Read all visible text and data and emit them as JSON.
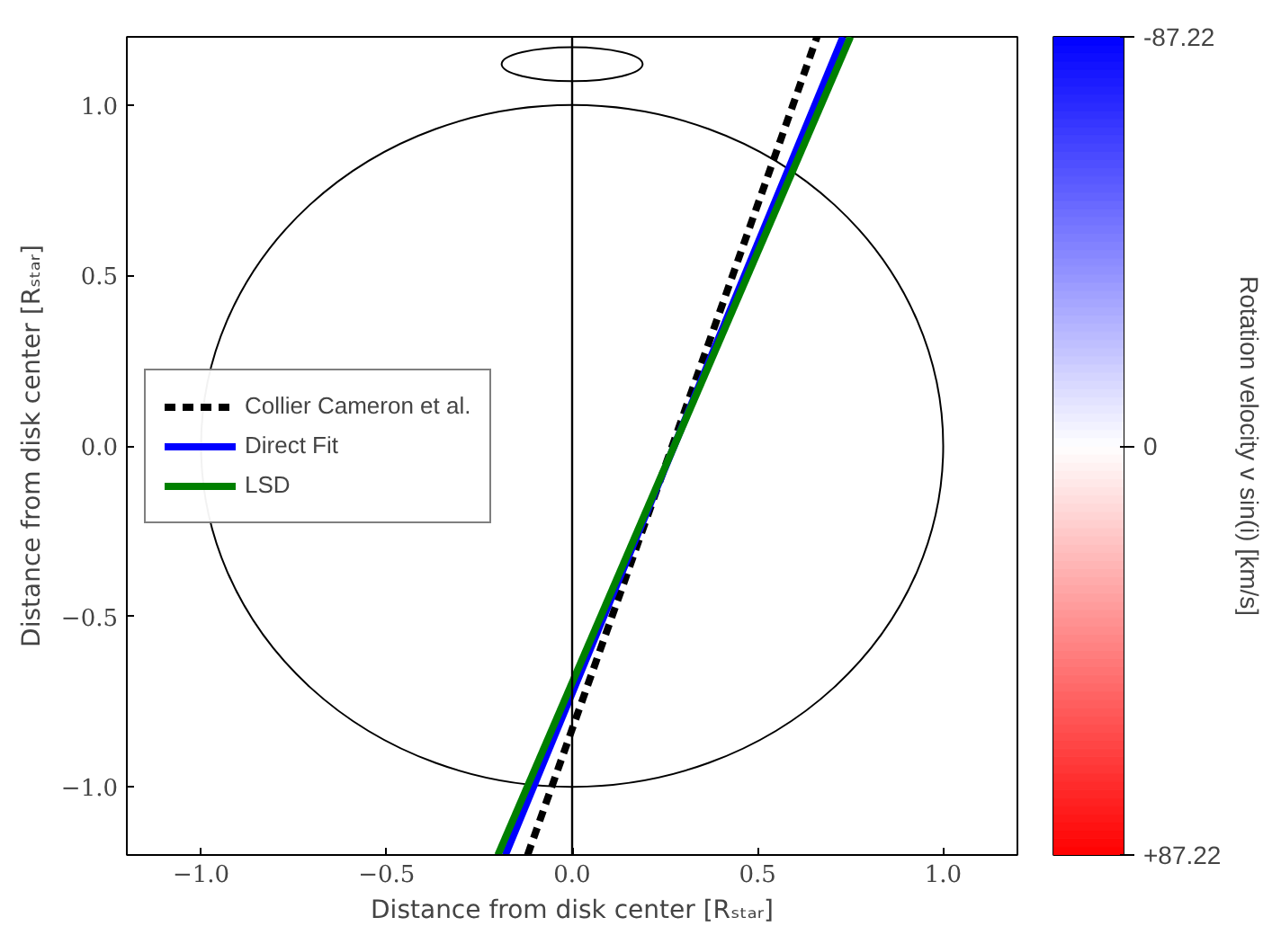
{
  "chart_data": {
    "type": "line",
    "xlabel": "Distance from disk center [Rₛₜₐᵣ]",
    "ylabel": "Distance from disk center [Rₛₜₐᵣ]",
    "clabel": "Rotation velocity v sin(i) [km/s]",
    "clim": [
      87.22,
      -87.22
    ],
    "cticks": [
      {
        "value": 87.22,
        "label": "+87.22"
      },
      0,
      {
        "value": -87.22,
        "label": "-87.22"
      }
    ],
    "xlim": [
      -1.2,
      1.2
    ],
    "ylim": [
      -1.2,
      1.2
    ],
    "xticks": [
      {
        "value": -1.0,
        "label": "−1.0"
      },
      {
        "value": -0.5,
        "label": "−0.5"
      },
      {
        "value": 0.0,
        "label": "0.0"
      },
      {
        "value": 0.5,
        "label": "0.5"
      },
      {
        "value": 1.0,
        "label": "1.0"
      }
    ],
    "yticks": [
      {
        "value": -1.0,
        "label": "−1.0"
      },
      {
        "value": -0.5,
        "label": "−0.5"
      },
      {
        "value": 0.0,
        "label": "0.0"
      },
      {
        "value": 0.5,
        "label": "0.5"
      },
      {
        "value": 1.0,
        "label": "1.0"
      }
    ],
    "ref_lines": [
      {
        "axis": "x",
        "value": 0,
        "color": "#000000"
      }
    ],
    "legend": "left",
    "grid": false,
    "series": [
      {
        "name": "Collier Cameron et al.",
        "color": "#000000",
        "line_style": "dashed",
        "x": [
          -0.12,
          0.66
        ],
        "values": [
          -1.2,
          1.2
        ]
      },
      {
        "name": "Direct Fit",
        "color": "#0000ff",
        "line_style": "solid",
        "x": [
          -0.18,
          0.73
        ],
        "values": [
          -1.2,
          1.2
        ]
      },
      {
        "name": "LSD",
        "color": "#008000",
        "line_style": "solid",
        "x": [
          -0.2,
          0.75
        ],
        "values": [
          -1.2,
          1.2
        ]
      }
    ]
  }
}
